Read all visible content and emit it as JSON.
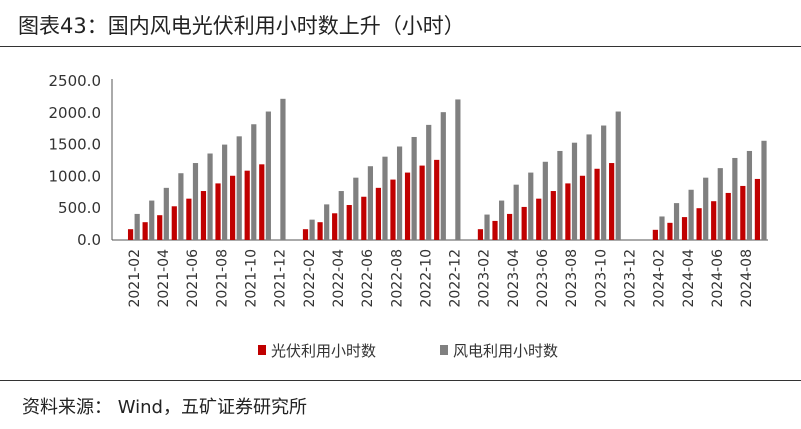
{
  "header": {
    "title": "图表43：国内风电光伏利用小时数上升（小时）"
  },
  "footer": {
    "source": "资料来源：  Wind，五矿证券研究所"
  },
  "chart_data": {
    "type": "bar",
    "ylim": [
      0,
      2500
    ],
    "yticks": [
      "2500.0",
      "2000.0",
      "1500.0",
      "1000.0",
      "500.0",
      "0.0"
    ],
    "ytick_values": [
      2500,
      2000,
      1500,
      1000,
      500,
      0
    ],
    "x": [
      "2021-01",
      "2021-02",
      "2021-03",
      "2021-04",
      "2021-05",
      "2021-06",
      "2021-07",
      "2021-08",
      "2021-09",
      "2021-10",
      "2021-11",
      "2021-12",
      "2022-01",
      "2022-02",
      "2022-03",
      "2022-04",
      "2022-05",
      "2022-06",
      "2022-07",
      "2022-08",
      "2022-09",
      "2022-10",
      "2022-11",
      "2022-12",
      "2023-01",
      "2023-02",
      "2023-03",
      "2023-04",
      "2023-05",
      "2023-06",
      "2023-07",
      "2023-08",
      "2023-09",
      "2023-10",
      "2023-11",
      "2023-12",
      "2024-01",
      "2024-02",
      "2024-03",
      "2024-04",
      "2024-05",
      "2024-06",
      "2024-07",
      "2024-08",
      "2024-09"
    ],
    "xtick_labels": [
      "2021-02",
      "2021-04",
      "2021-06",
      "2021-08",
      "2021-10",
      "2021-12",
      "2022-02",
      "2022-04",
      "2022-06",
      "2022-08",
      "2022-10",
      "2022-12",
      "2023-02",
      "2023-04",
      "2023-06",
      "2023-08",
      "2023-10",
      "2023-12",
      "2024-02",
      "2024-04",
      "2024-06",
      "2024-08"
    ],
    "series": [
      {
        "name": "光伏利用小时数",
        "color": "#c00000",
        "values": [
          null,
          170,
          280,
          390,
          530,
          650,
          770,
          890,
          1010,
          1090,
          1190,
          null,
          null,
          170,
          280,
          420,
          550,
          680,
          820,
          950,
          1060,
          1170,
          1260,
          null,
          null,
          170,
          300,
          410,
          520,
          650,
          770,
          890,
          1010,
          1120,
          1210,
          null,
          null,
          160,
          270,
          360,
          500,
          610,
          740,
          850,
          960
        ]
      },
      {
        "name": "风电利用小时数",
        "color": "#808080",
        "values": [
          null,
          410,
          620,
          820,
          1050,
          1210,
          1360,
          1500,
          1630,
          1820,
          2020,
          2220,
          null,
          320,
          560,
          770,
          980,
          1160,
          1310,
          1470,
          1620,
          1810,
          2010,
          2210,
          null,
          400,
          620,
          870,
          1060,
          1230,
          1400,
          1530,
          1660,
          1800,
          2020,
          null,
          null,
          370,
          580,
          790,
          980,
          1130,
          1290,
          1400,
          1560
        ]
      }
    ]
  }
}
